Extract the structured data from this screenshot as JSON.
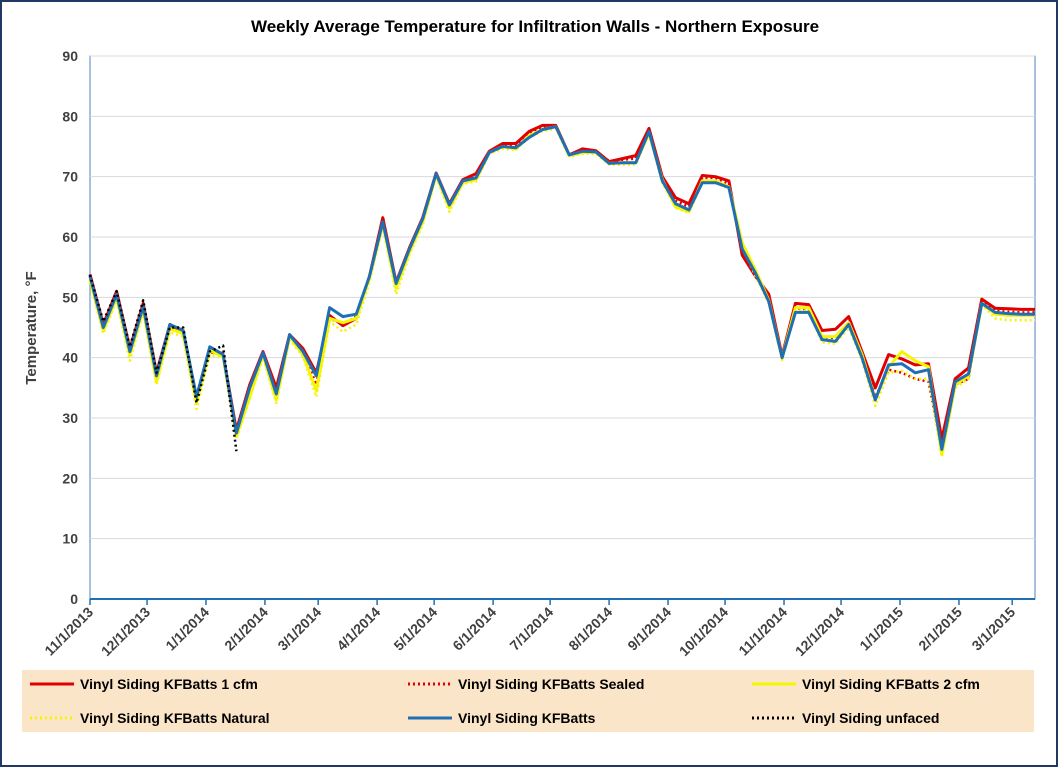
{
  "chart_data": {
    "type": "line",
    "title": "Weekly Average Temperature for Infiltration Walls - Northern Exposure",
    "y_label": "Temperature, °F",
    "x": [
      "2013-11-01",
      "2013-11-08",
      "2013-11-15",
      "2013-11-22",
      "2013-11-29",
      "2013-12-06",
      "2013-12-13",
      "2013-12-20",
      "2013-12-27",
      "2014-01-03",
      "2014-01-10",
      "2014-01-17",
      "2014-01-24",
      "2014-01-31",
      "2014-02-07",
      "2014-02-14",
      "2014-02-21",
      "2014-02-28",
      "2014-03-07",
      "2014-03-14",
      "2014-03-21",
      "2014-03-28",
      "2014-04-04",
      "2014-04-11",
      "2014-04-18",
      "2014-04-25",
      "2014-05-02",
      "2014-05-09",
      "2014-05-16",
      "2014-05-23",
      "2014-05-30",
      "2014-06-06",
      "2014-06-13",
      "2014-06-20",
      "2014-06-27",
      "2014-07-04",
      "2014-07-11",
      "2014-07-18",
      "2014-07-25",
      "2014-08-01",
      "2014-08-08",
      "2014-08-15",
      "2014-08-22",
      "2014-08-29",
      "2014-09-05",
      "2014-09-12",
      "2014-09-19",
      "2014-09-26",
      "2014-10-03",
      "2014-10-10",
      "2014-10-17",
      "2014-10-24",
      "2014-10-31",
      "2014-11-07",
      "2014-11-14",
      "2014-11-21",
      "2014-11-28",
      "2014-12-05",
      "2014-12-12",
      "2014-12-19",
      "2014-12-26",
      "2015-01-02",
      "2015-01-09",
      "2015-01-16",
      "2015-01-23",
      "2015-01-30",
      "2015-02-06",
      "2015-02-13",
      "2015-02-20",
      "2015-02-27",
      "2015-03-06",
      "2015-03-13"
    ],
    "xlim": [
      "2013-11-01",
      "2015-03-13"
    ],
    "xticks": [
      {
        "value": "2013-11-01",
        "label": "11/1/2013"
      },
      {
        "value": "2013-12-01",
        "label": "12/1/2013"
      },
      {
        "value": "2014-01-01",
        "label": "1/1/2014"
      },
      {
        "value": "2014-02-01",
        "label": "2/1/2014"
      },
      {
        "value": "2014-03-01",
        "label": "3/1/2014"
      },
      {
        "value": "2014-04-01",
        "label": "4/1/2014"
      },
      {
        "value": "2014-05-01",
        "label": "5/1/2014"
      },
      {
        "value": "2014-06-01",
        "label": "6/1/2014"
      },
      {
        "value": "2014-07-01",
        "label": "7/1/2014"
      },
      {
        "value": "2014-08-01",
        "label": "8/1/2014"
      },
      {
        "value": "2014-09-01",
        "label": "9/1/2014"
      },
      {
        "value": "2014-10-01",
        "label": "10/1/2014"
      },
      {
        "value": "2014-11-01",
        "label": "11/1/2014"
      },
      {
        "value": "2014-12-01",
        "label": "12/1/2014"
      },
      {
        "value": "2015-01-01",
        "label": "1/1/2015"
      },
      {
        "value": "2015-02-01",
        "label": "2/1/2015"
      },
      {
        "value": "2015-03-01",
        "label": "3/1/2015"
      }
    ],
    "ylim": [
      0,
      90
    ],
    "yticks": [
      0,
      10,
      20,
      30,
      40,
      50,
      60,
      70,
      80,
      90
    ],
    "grid": true,
    "series": [
      {
        "name": "Vinyl Siding KFBatts 1 cfm",
        "color": "#e00000",
        "style": "solid",
        "values": [
          53.8,
          45.5,
          51,
          41.5,
          49,
          37.5,
          45.5,
          44,
          33.5,
          41.5,
          40.5,
          28,
          35.5,
          41,
          35,
          43.8,
          41.5,
          37.5,
          47,
          45.3,
          46.5,
          53.5,
          63.2,
          52.5,
          58.2,
          63.2,
          70.6,
          65.5,
          69.5,
          70.5,
          74.2,
          75.5,
          75.5,
          77.5,
          78.5,
          78.5,
          73.6,
          74.6,
          74.3,
          72.5,
          73,
          73.5,
          78,
          70,
          66.5,
          65.5,
          70.2,
          70,
          69.3,
          57,
          53.5,
          50.5,
          40.3,
          49,
          48.8,
          44.5,
          44.7,
          46.8,
          41,
          35,
          40.5,
          39.8,
          38.8,
          39,
          26.5,
          36.5,
          38.3,
          49.7,
          48.2,
          48.1,
          48,
          48
        ]
      },
      {
        "name": "Vinyl Siding KFBatts Sealed",
        "color": "#e00000",
        "style": "dotted",
        "values": [
          53.6,
          45.3,
          50.8,
          41.2,
          48.8,
          37.2,
          44.8,
          44.8,
          33,
          40.8,
          40.8,
          27,
          34,
          40.5,
          33.5,
          43.5,
          41.2,
          35.5,
          46.5,
          45.5,
          46.8,
          53.3,
          63,
          52,
          57.8,
          63,
          70.5,
          65.3,
          69.3,
          70.2,
          74,
          75.3,
          75.2,
          77.3,
          78.2,
          78.4,
          73.6,
          74.4,
          74.2,
          72.6,
          72.8,
          73,
          78,
          69.8,
          66,
          65,
          69.8,
          69.8,
          68.8,
          57.5,
          53.5,
          49.8,
          40.2,
          48.2,
          48,
          43.5,
          43.2,
          45.8,
          40.5,
          33.5,
          38,
          37.5,
          36.5,
          36,
          25,
          35.5,
          36.5,
          49.3,
          47.8,
          47.6,
          47.5,
          47.5
        ]
      },
      {
        "name": "Vinyl Siding KFBatts 2 cfm",
        "color": "#f5f500",
        "style": "solid",
        "values": [
          53,
          44.5,
          50,
          40.5,
          48,
          36,
          44.8,
          44,
          32.5,
          41.2,
          40.2,
          27,
          33.5,
          40.5,
          33,
          43.5,
          40.5,
          34.5,
          46.5,
          45.8,
          46.5,
          53.2,
          62.2,
          51.5,
          57.5,
          62.5,
          70.3,
          64.8,
          69,
          69.5,
          74,
          75,
          74.6,
          76.8,
          77.8,
          78.3,
          73.5,
          74,
          74,
          72.2,
          72.3,
          72.3,
          77.2,
          69.5,
          65,
          64.2,
          69.3,
          69.3,
          68.3,
          59,
          54.5,
          49.5,
          40,
          48.3,
          48.3,
          43.5,
          43.5,
          45.8,
          40.5,
          33,
          38.5,
          41,
          39.5,
          38.5,
          24,
          35.5,
          37,
          49,
          47.2,
          47,
          47,
          47
        ]
      },
      {
        "name": "Vinyl Siding KFBatts Natural",
        "color": "#f5f500",
        "style": "dotted",
        "values": [
          52.5,
          44,
          49.5,
          39.5,
          47.5,
          35.5,
          44.2,
          43.5,
          31.5,
          40.5,
          40,
          26.5,
          33.2,
          40,
          32.5,
          43,
          40.2,
          33.5,
          46,
          44.3,
          45.5,
          52.5,
          61.8,
          50.5,
          57,
          62,
          70,
          64.2,
          68.8,
          69.2,
          73.8,
          74.6,
          74.4,
          76.5,
          77.5,
          78,
          73.3,
          73.8,
          73.8,
          72,
          72,
          72,
          77,
          69,
          64.8,
          64,
          69,
          69,
          68,
          58.5,
          53.5,
          49,
          39.6,
          47.8,
          47.8,
          42.5,
          42.3,
          45,
          39.5,
          32,
          37.5,
          37.8,
          36.5,
          36.5,
          23.5,
          35,
          36.5,
          48.8,
          46.5,
          46.2,
          46.2,
          46.2
        ]
      },
      {
        "name": "Vinyl Siding KFBatts",
        "color": "#1f6fb4",
        "style": "solid",
        "values": [
          53.5,
          45,
          50.5,
          41,
          48.5,
          37,
          45.5,
          44.5,
          33.5,
          41.8,
          40.5,
          27.5,
          35,
          40.8,
          34,
          43.8,
          41,
          37,
          48.3,
          46.8,
          47.2,
          53.5,
          62.5,
          52.3,
          58,
          63,
          70.5,
          65.3,
          69.3,
          69.8,
          74,
          75,
          74.8,
          76.5,
          77.8,
          78.3,
          73.6,
          74.2,
          74.1,
          72.2,
          72.3,
          72.3,
          77.5,
          69.3,
          65.5,
          64.5,
          69,
          69,
          68.2,
          58,
          54,
          49.3,
          40,
          47.5,
          47.5,
          43,
          42.7,
          45.5,
          40,
          33,
          38.8,
          39,
          37.5,
          38,
          24.8,
          36,
          37.3,
          49,
          47.5,
          47.3,
          47.2,
          47.2
        ]
      },
      {
        "name": "Vinyl Siding unfaced",
        "color": "#000000",
        "style": "dotted",
        "values": [
          53.7,
          46,
          51,
          41.8,
          49.5,
          37.5,
          45,
          45,
          32.5,
          41,
          42,
          24.5,
          null,
          null,
          null,
          null,
          null,
          null,
          null,
          null,
          null,
          null,
          null,
          null,
          null,
          null,
          null,
          null,
          null,
          null,
          null,
          null,
          null,
          null,
          null,
          null,
          null,
          null,
          null,
          null,
          null,
          null,
          null,
          null,
          null,
          null,
          null,
          null,
          null,
          null,
          null,
          null,
          null,
          null,
          null,
          null,
          null,
          null,
          null,
          null,
          null,
          null,
          null,
          null,
          null,
          null,
          null,
          null,
          null,
          null,
          null,
          null
        ]
      }
    ]
  }
}
